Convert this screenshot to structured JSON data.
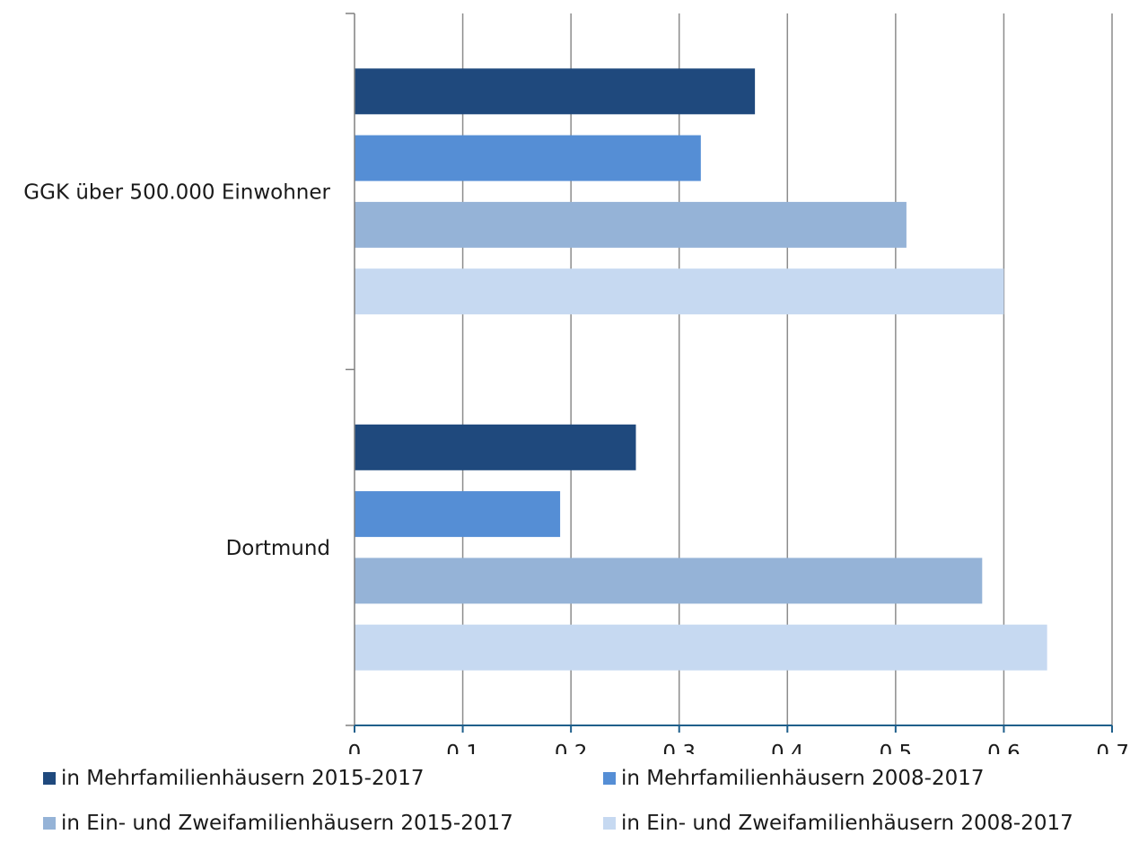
{
  "chart_data": {
    "type": "bar",
    "orientation": "horizontal",
    "categories": [
      "GGK über 500.000 Einwohner",
      "Dortmund"
    ],
    "series": [
      {
        "name": "in Mehrfamilienhäusern 2015-2017",
        "color": "#1F497D",
        "values": [
          0.37,
          0.26
        ]
      },
      {
        "name": "in Mehrfamilienhäusern 2008-2017",
        "color": "#558ED5",
        "values": [
          0.32,
          0.19
        ]
      },
      {
        "name": "in Ein- und Zweifamilienhäusern 2015-2017",
        "color": "#95B3D7",
        "values": [
          0.51,
          0.58
        ]
      },
      {
        "name": "in Ein- und Zweifamilienhäusern 2008-2017",
        "color": "#C6D9F1",
        "values": [
          0.6,
          0.64
        ]
      }
    ],
    "xlim": [
      0,
      0.7
    ],
    "ticks": [
      0,
      0.1,
      0.2,
      0.3,
      0.4,
      0.5,
      0.6,
      0.7
    ],
    "tick_labels": [
      "0",
      "0,1",
      "0,2",
      "0,3",
      "0,4",
      "0,5",
      "0,6",
      "0,7"
    ],
    "title": "",
    "xlabel": "",
    "ylabel": "",
    "grid": true,
    "legend_position": "bottom",
    "axis_color": "#1F5F8B",
    "grid_color": "#8C8C8C"
  }
}
